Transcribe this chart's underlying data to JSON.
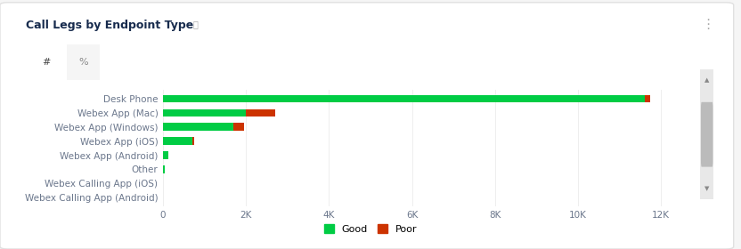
{
  "title": "Call Legs by Endpoint Type",
  "categories": [
    "Desk Phone",
    "Webex App (Mac)",
    "Webex App (Windows)",
    "Webex App (iOS)",
    "Webex App (Android)",
    "Other",
    "Webex Calling App (iOS)",
    "Webex Calling App (Android)"
  ],
  "good_values": [
    11600,
    2000,
    1700,
    700,
    120,
    40,
    8,
    5
  ],
  "poor_values": [
    150,
    700,
    250,
    60,
    0,
    0,
    0,
    0
  ],
  "good_color": "#00CC44",
  "poor_color": "#CC3300",
  "xlim": [
    0,
    12500
  ],
  "xticks": [
    0,
    2000,
    4000,
    6000,
    8000,
    10000,
    12000
  ],
  "xtick_labels": [
    "0",
    "2K",
    "4K",
    "6K",
    "8K",
    "10K",
    "12K"
  ],
  "background_color": "#f5f5f5",
  "card_color": "#ffffff",
  "bar_height": 0.55,
  "label_fontsize": 7.5,
  "tick_fontsize": 7.5,
  "legend_fontsize": 8,
  "title_fontsize": 9,
  "title_text": "Call Legs by Endpoint Type",
  "card_border_color": "#e0e0e0",
  "text_color": "#6b778c",
  "title_color": "#172b4d"
}
